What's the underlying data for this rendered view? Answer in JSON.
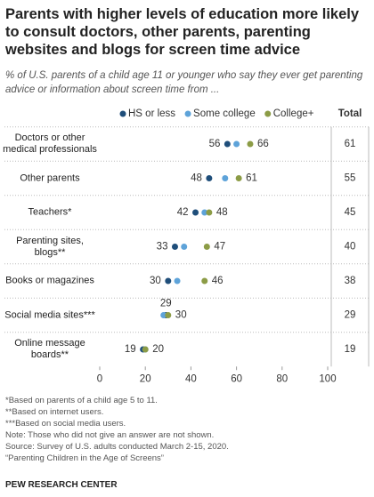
{
  "chart_data": {
    "type": "dot",
    "title": "Parents with higher levels of education more likely to consult doctors, other parents, parenting websites and blogs for screen time advice",
    "subtitle": "% of U.S. parents of a child age 11 or younger who say they ever get parenting advice or information about screen time from ...",
    "categories": [
      "Doctors or other medical professionals",
      "Other parents",
      "Teachers*",
      "Parenting sites, blogs**",
      "Books or magazines",
      "Social media sites***",
      "Online message boards**"
    ],
    "series": [
      {
        "name": "HS or less",
        "color": "#1f4e7a",
        "show_labels": true,
        "values": [
          56,
          48,
          42,
          33,
          30,
          29,
          19
        ]
      },
      {
        "name": "Some college",
        "color": "#5ea3d9",
        "show_labels": false,
        "values": [
          60,
          55,
          46,
          37,
          34,
          28,
          20
        ]
      },
      {
        "name": "College+",
        "color": "#8c9c46",
        "show_labels": true,
        "values": [
          66,
          61,
          48,
          47,
          46,
          30,
          20
        ]
      }
    ],
    "totals": {
      "label": "Total",
      "values": [
        61,
        55,
        45,
        40,
        38,
        29,
        19
      ]
    },
    "xlim": [
      0,
      100
    ],
    "xticks": [
      0,
      20,
      40,
      60,
      80,
      100
    ],
    "notes": [
      "*Based on parents of a child age 5 to 11.",
      "**Based on internet users.",
      "***Based on social media users.",
      "Note: Those who did not give an answer are not shown.",
      "Source: Survey of U.S. adults conducted March 2-15, 2020.",
      "“Parenting Children in the Age of Screens”"
    ],
    "source": "PEW RESEARCH CENTER"
  }
}
